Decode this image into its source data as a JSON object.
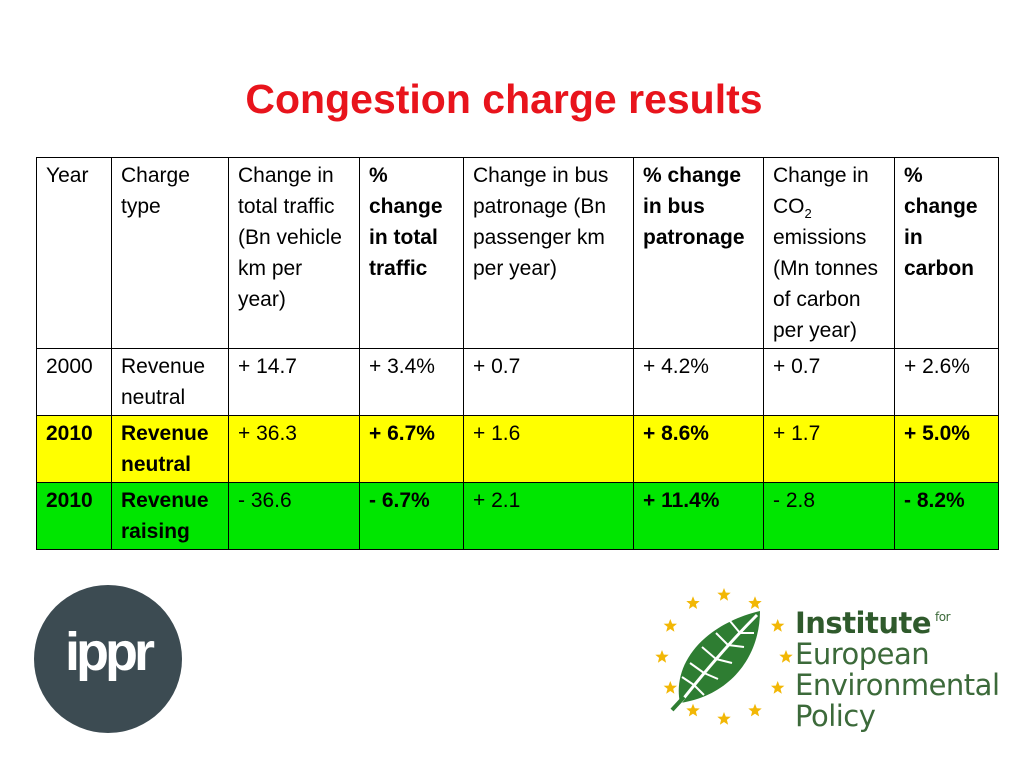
{
  "title": "Congestion charge results",
  "table": {
    "headers": {
      "year": "Year",
      "charge_type": "Charge type",
      "traffic_change": "Change in total traffic (Bn vehicle km per year)",
      "traffic_pct": "% change in total traffic",
      "bus_change": "Change in bus patronage (Bn passenger km per year)",
      "bus_pct": "% change in bus patronage",
      "co2_prefix": "Change in CO",
      "co2_sub": "2",
      "co2_suffix": "emissions (Mn tonnes of carbon per year)",
      "carbon_pct": "% change in carbon"
    },
    "rows": [
      {
        "year": "2000",
        "charge_type": "Revenue neutral",
        "traffic_change": "+ 14.7",
        "traffic_pct": "+ 3.4%",
        "bus_change": "+ 0.7",
        "bus_pct": "+ 4.2%",
        "co2_change": "+ 0.7",
        "carbon_pct": "+ 2.6%"
      },
      {
        "year": "2010",
        "charge_type": "Revenue neutral",
        "traffic_change": "+ 36.3",
        "traffic_pct": "+ 6.7%",
        "bus_change": "+ 1.6",
        "bus_pct": "+ 8.6%",
        "co2_change": "+ 1.7",
        "carbon_pct": "+ 5.0%"
      },
      {
        "year": "2010",
        "charge_type": "Revenue raising",
        "traffic_change": "- 36.6",
        "traffic_pct": "- 6.7%",
        "bus_change": "+ 2.1",
        "bus_pct": "+ 11.4%",
        "co2_change": "- 2.8",
        "carbon_pct": "- 8.2%"
      }
    ],
    "colors": {
      "row_2010_neutral": "#ffff00",
      "row_2010_raising": "#00e600"
    }
  },
  "logos": {
    "ippr": {
      "text": "ippr",
      "color": "#3c4b52"
    },
    "ieep": {
      "line1": "Institute",
      "line1_small": "for",
      "line2": "European",
      "line3": "Environmental",
      "line4": "Policy",
      "color": "#3c6a3a",
      "star_color": "#f2b705"
    }
  },
  "title_color": "#e8141c"
}
